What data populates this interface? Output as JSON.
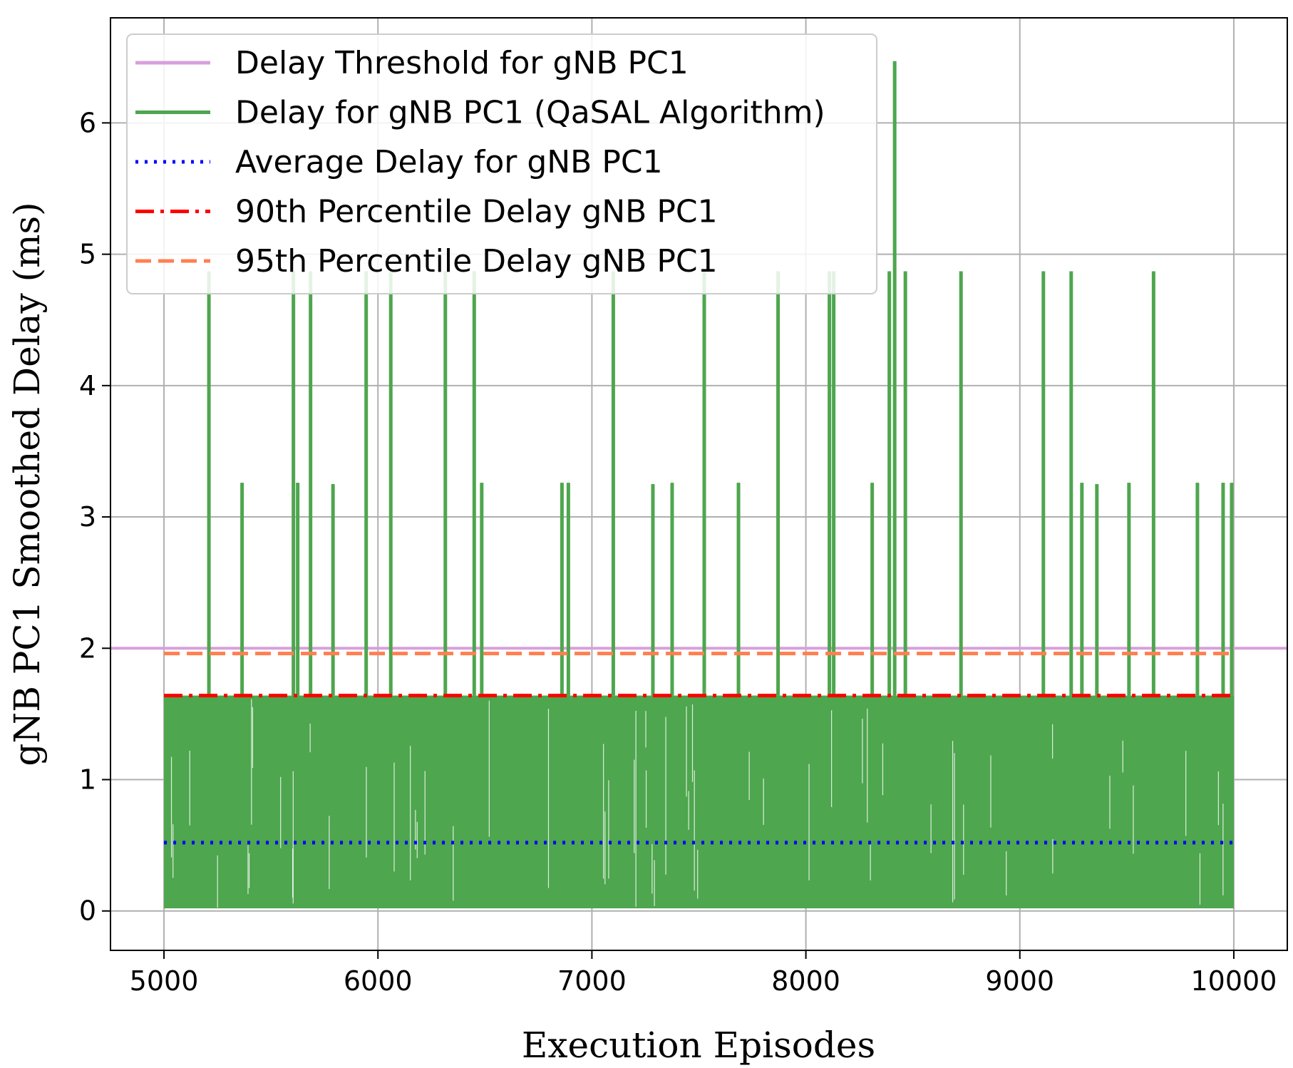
{
  "chart_data": {
    "type": "line",
    "xlabel": "Execution Episodes",
    "ylabel": "gNB PC1 Smoothed Delay (ms)",
    "xlim": [
      4750,
      10250
    ],
    "ylim": [
      -0.3,
      6.8
    ],
    "xticks": [
      5000,
      6000,
      7000,
      8000,
      9000,
      10000
    ],
    "yticks": [
      0,
      1,
      2,
      3,
      4,
      5,
      6
    ],
    "grid": true,
    "legend_position": "upper-left",
    "series": [
      {
        "name": "Delay Threshold for gNB PC1",
        "kind": "hline",
        "value": 2.0,
        "color": "#d8a0dc",
        "style": "solid"
      },
      {
        "name": "Delay for gNB PC1 (QaSAL Algorithm)",
        "kind": "signal",
        "color": "#4ea64e",
        "style": "solid",
        "x_range": [
          5000,
          10000
        ],
        "base_band": [
          0.02,
          1.64
        ],
        "spikes": [
          {
            "x": 5210,
            "y": 4.87
          },
          {
            "x": 5365,
            "y": 3.26
          },
          {
            "x": 5605,
            "y": 4.87
          },
          {
            "x": 5625,
            "y": 3.26
          },
          {
            "x": 5685,
            "y": 4.87
          },
          {
            "x": 5790,
            "y": 3.25
          },
          {
            "x": 5945,
            "y": 4.87
          },
          {
            "x": 6060,
            "y": 4.87
          },
          {
            "x": 6315,
            "y": 4.87
          },
          {
            "x": 6450,
            "y": 4.87
          },
          {
            "x": 6485,
            "y": 3.26
          },
          {
            "x": 6860,
            "y": 3.26
          },
          {
            "x": 6890,
            "y": 3.26
          },
          {
            "x": 7100,
            "y": 4.87
          },
          {
            "x": 7285,
            "y": 3.25
          },
          {
            "x": 7375,
            "y": 3.26
          },
          {
            "x": 7525,
            "y": 4.87
          },
          {
            "x": 7685,
            "y": 3.26
          },
          {
            "x": 7870,
            "y": 4.87
          },
          {
            "x": 8110,
            "y": 4.87
          },
          {
            "x": 8130,
            "y": 4.87
          },
          {
            "x": 8310,
            "y": 3.26
          },
          {
            "x": 8390,
            "y": 4.87
          },
          {
            "x": 8415,
            "y": 6.47
          },
          {
            "x": 8465,
            "y": 4.87
          },
          {
            "x": 8725,
            "y": 4.87
          },
          {
            "x": 9110,
            "y": 4.87
          },
          {
            "x": 9240,
            "y": 4.87
          },
          {
            "x": 9290,
            "y": 3.26
          },
          {
            "x": 9360,
            "y": 3.25
          },
          {
            "x": 9510,
            "y": 3.26
          },
          {
            "x": 9625,
            "y": 4.87
          },
          {
            "x": 9830,
            "y": 3.26
          },
          {
            "x": 9950,
            "y": 3.26
          },
          {
            "x": 9990,
            "y": 3.26
          }
        ]
      },
      {
        "name": "Average Delay for gNB PC1",
        "kind": "hline",
        "value": 0.52,
        "x_range": [
          5000,
          10000
        ],
        "color": "#0000ff",
        "style": "dotted"
      },
      {
        "name": "90th Percentile Delay gNB PC1",
        "kind": "hline",
        "value": 1.64,
        "x_range": [
          5000,
          10000
        ],
        "color": "#ff0000",
        "style": "dashdot"
      },
      {
        "name": "95th Percentile Delay gNB PC1",
        "kind": "hline",
        "value": 1.96,
        "x_range": [
          5000,
          10000
        ],
        "color": "#ff7f50",
        "style": "dashed"
      }
    ]
  }
}
